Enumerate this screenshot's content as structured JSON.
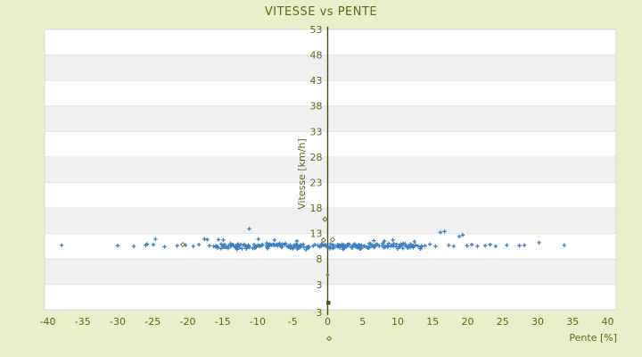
{
  "app": {
    "background_color": "#e9edcb",
    "text_color": "#5e6916",
    "axis_color": "#454f10",
    "plot_border_color": "#d9d9d9",
    "gridline_color": "#e4e4e4",
    "stripe_colors": [
      "#ffffff",
      "#f0f0f0"
    ]
  },
  "chart_data": {
    "type": "scatter",
    "title": "VITESSE vs PENTE",
    "xlabel": "Pente [%]",
    "ylabel": "Vitesse [km/h]",
    "xlim": [
      -40,
      40
    ],
    "ylim": [
      -3,
      53
    ],
    "x_ticks": [
      -40,
      -35,
      -30,
      -25,
      -20,
      -15,
      -10,
      -5,
      0,
      5,
      10,
      15,
      20,
      25,
      30,
      35,
      40
    ],
    "y_ticks": [
      53,
      48,
      43,
      38,
      33,
      28,
      23,
      18,
      13,
      8,
      3
    ],
    "y_axis_end_label": "3",
    "grid": "horizontal-stripes",
    "legend": "none",
    "series": [
      {
        "name": "vitesse-vs-pente",
        "marker": "plus",
        "color": "#3e7ec0",
        "points": [
          [
            -38,
            10.7
          ],
          [
            -30,
            10.6
          ],
          [
            -27.7,
            10.5
          ],
          [
            -26,
            10.7
          ],
          [
            -25.8,
            10.9
          ],
          [
            -24.9,
            10.8
          ],
          [
            -24.6,
            11.9
          ],
          [
            -23.3,
            10.4
          ],
          [
            -21.5,
            10.6
          ],
          [
            -20.3,
            10.7
          ],
          [
            -19.2,
            10.5
          ],
          [
            -18.4,
            10.8
          ],
          [
            -17.6,
            11.9
          ],
          [
            -17.2,
            11.8
          ],
          [
            -16.9,
            10.6
          ],
          [
            -16.3,
            10.5
          ],
          [
            -15.6,
            11.8
          ],
          [
            -14.9,
            11.7
          ],
          [
            -11.2,
            13.9
          ],
          [
            -9.9,
            11.9
          ],
          [
            -7.6,
            11.7
          ],
          [
            -4.4,
            11.5
          ],
          [
            -3.1,
            9.8
          ],
          [
            2.2,
            9.9
          ],
          [
            6.6,
            11.6
          ],
          [
            8.1,
            11.5
          ],
          [
            9.3,
            11.7
          ],
          [
            12.4,
            11.4
          ],
          [
            13.9,
            10.6
          ],
          [
            14.6,
            10.9
          ],
          [
            15.4,
            10.5
          ],
          [
            16.1,
            13.2
          ],
          [
            16.7,
            13.4
          ],
          [
            17.3,
            10.7
          ],
          [
            18.0,
            10.5
          ],
          [
            18.8,
            12.4
          ],
          [
            19.3,
            12.7
          ],
          [
            19.9,
            10.6
          ],
          [
            20.6,
            10.8
          ],
          [
            21.4,
            10.5
          ],
          [
            22.5,
            10.6
          ],
          [
            23.2,
            10.8
          ],
          [
            24.0,
            10.5
          ],
          [
            25.6,
            10.7
          ],
          [
            27.4,
            10.6
          ],
          [
            28.1,
            10.7
          ],
          [
            30.2,
            11.2
          ],
          [
            33.8,
            10.7
          ]
        ],
        "dense_band": {
          "x_min": -16,
          "x_max": 13.5,
          "count": 235,
          "y_center": 10.55,
          "y_spread": 0.5,
          "seed": 7
        }
      },
      {
        "name": "axis-markers",
        "color": "#6f7a1e",
        "points": [
          {
            "x": -20.7,
            "y": 10.8,
            "shape": "diamond"
          },
          {
            "x": -0.4,
            "y": 15.8,
            "shape": "diamond"
          },
          {
            "x": -0.6,
            "y": 11.7,
            "shape": "diamond"
          },
          {
            "x": 0.7,
            "y": 11.8,
            "shape": "diamond"
          },
          {
            "x": 0.0,
            "y": 4.9,
            "shape": "plus"
          },
          {
            "x": 0.1,
            "y": -0.6,
            "shape": "square"
          },
          {
            "x": 0.2,
            "y": -7.6,
            "shape": "diamond"
          }
        ]
      }
    ]
  }
}
